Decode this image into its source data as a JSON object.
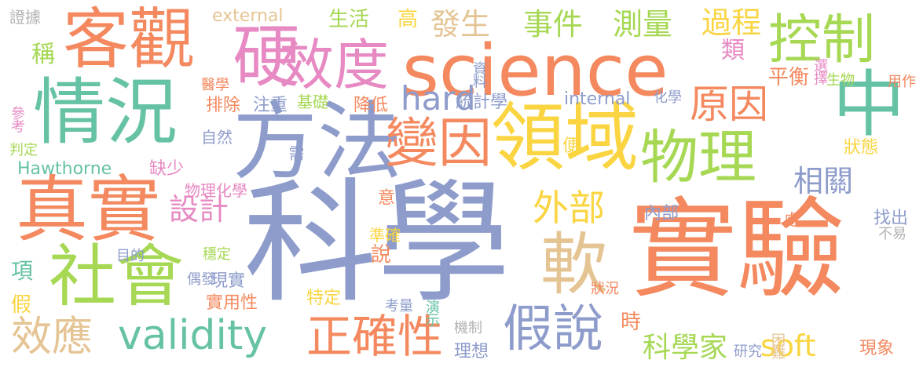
{
  "palette": {
    "orange": "#f4895f",
    "blue": "#8e9ccb",
    "green": "#66c2a5",
    "yellow": "#fad541",
    "lime": "#a6d854",
    "pink": "#e78ac3",
    "tan": "#e5c494",
    "gray": "#b3b3b3"
  },
  "words": [
    {
      "text": "科學",
      "color": "blue"
    },
    {
      "text": "實驗",
      "color": "orange"
    },
    {
      "text": "science",
      "color": "orange"
    },
    {
      "text": "方法",
      "color": "blue"
    },
    {
      "text": "領域",
      "color": "yellow"
    },
    {
      "text": "真實",
      "color": "orange"
    },
    {
      "text": "情況",
      "color": "green"
    },
    {
      "text": "客觀",
      "color": "orange"
    },
    {
      "text": "中",
      "color": "green"
    },
    {
      "text": "社會",
      "color": "lime"
    },
    {
      "text": "硬",
      "color": "pink"
    },
    {
      "text": "效度",
      "color": "pink"
    },
    {
      "text": "物理",
      "color": "lime"
    },
    {
      "text": "控制",
      "color": "lime"
    },
    {
      "text": "變因",
      "color": "orange"
    },
    {
      "text": "軟",
      "color": "tan"
    },
    {
      "text": "假說",
      "color": "blue"
    },
    {
      "text": "validity",
      "color": "green"
    },
    {
      "text": "效應",
      "color": "tan"
    },
    {
      "text": "正確性",
      "color": "orange"
    },
    {
      "text": "hard",
      "color": "blue"
    },
    {
      "text": "原因",
      "color": "orange"
    },
    {
      "text": "事件",
      "color": "lime"
    },
    {
      "text": "測量",
      "color": "lime"
    },
    {
      "text": "發生",
      "color": "tan"
    },
    {
      "text": "過程",
      "color": "yellow"
    },
    {
      "text": "外部",
      "color": "yellow"
    },
    {
      "text": "設計",
      "color": "pink"
    },
    {
      "text": "相關",
      "color": "blue"
    },
    {
      "text": "科學家",
      "color": "lime"
    },
    {
      "text": "soft",
      "color": "yellow"
    },
    {
      "text": "類",
      "color": "pink"
    },
    {
      "text": "稱",
      "color": "lime"
    },
    {
      "text": "高",
      "color": "yellow"
    },
    {
      "text": "生活",
      "color": "lime"
    },
    {
      "text": "external",
      "color": "tan"
    },
    {
      "text": "證據",
      "color": "gray"
    },
    {
      "text": "internal",
      "color": "blue"
    },
    {
      "text": "統計學",
      "color": "blue"
    },
    {
      "text": "降低",
      "color": "orange"
    },
    {
      "text": "排除",
      "color": "orange"
    },
    {
      "text": "注重",
      "color": "blue"
    },
    {
      "text": "基礎",
      "color": "lime"
    },
    {
      "text": "缺少",
      "color": "pink"
    },
    {
      "text": "Hawthorne",
      "color": "green"
    },
    {
      "text": "內部",
      "color": "blue"
    },
    {
      "text": "實用性",
      "color": "orange"
    },
    {
      "text": "特定",
      "color": "yellow"
    },
    {
      "text": "現實",
      "color": "blue"
    },
    {
      "text": "項",
      "color": "green"
    },
    {
      "text": "假",
      "color": "yellow"
    },
    {
      "text": "說",
      "color": "orange"
    },
    {
      "text": "時",
      "color": "orange"
    },
    {
      "text": "狀態",
      "color": "yellow"
    },
    {
      "text": "平衡",
      "color": "orange"
    },
    {
      "text": "化學",
      "color": "blue"
    },
    {
      "text": "生物",
      "color": "lime"
    },
    {
      "text": "用作",
      "color": "orange"
    },
    {
      "text": "選擇",
      "color": "pink"
    },
    {
      "text": "資料",
      "color": "blue"
    },
    {
      "text": "醫學",
      "color": "orange"
    },
    {
      "text": "參考",
      "color": "pink"
    },
    {
      "text": "判定",
      "color": "lime"
    },
    {
      "text": "自然",
      "color": "blue"
    },
    {
      "text": "需",
      "color": "blue"
    },
    {
      "text": "物理化學",
      "color": "pink"
    },
    {
      "text": "意",
      "color": "orange"
    },
    {
      "text": "準確",
      "color": "yellow"
    },
    {
      "text": "目的",
      "color": "blue"
    },
    {
      "text": "穩定",
      "color": "lime"
    },
    {
      "text": "偶發",
      "color": "blue"
    },
    {
      "text": "考量",
      "color": "blue"
    },
    {
      "text": "演示",
      "color": "green"
    },
    {
      "text": "機制",
      "color": "gray"
    },
    {
      "text": "理想",
      "color": "blue"
    },
    {
      "text": "狀況",
      "color": "orange"
    },
    {
      "text": "研究",
      "color": "blue"
    },
    {
      "text": "困難",
      "color": "tan"
    },
    {
      "text": "現象",
      "color": "orange"
    },
    {
      "text": "找出",
      "color": "blue"
    },
    {
      "text": "不易",
      "color": "gray"
    },
    {
      "text": "處",
      "color": "orange"
    },
    {
      "text": "便",
      "color": "yellow"
    }
  ]
}
